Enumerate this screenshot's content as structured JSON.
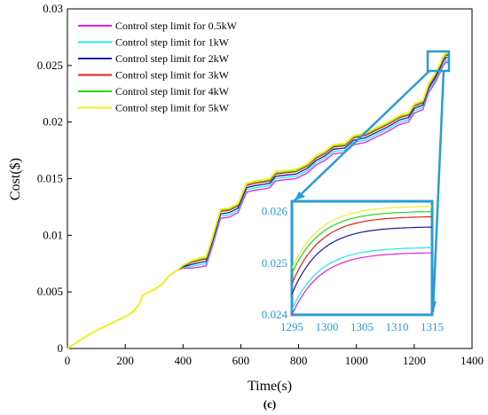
{
  "chart_data": {
    "type": "line",
    "caption": "(c)",
    "xlabel": "Time(s)",
    "ylabel": "Cost($)",
    "xlim": [
      0,
      1400
    ],
    "ylim": [
      0,
      0.03
    ],
    "x_ticks": [
      "0",
      "200",
      "400",
      "600",
      "800",
      "1000",
      "1200",
      "1400"
    ],
    "y_ticks": [
      "0",
      "0.005",
      "0.01",
      "0.015",
      "0.02",
      "0.025",
      "0.03"
    ],
    "grid": false,
    "legend_position": "top-left",
    "series": [
      {
        "name": "Control step limit for 0.5kW",
        "color": "#e020e0",
        "offset": -0.0006,
        "final": 0.0252
      },
      {
        "name": "Control step limit for 1kW",
        "color": "#20e8e8",
        "offset": -0.0004,
        "final": 0.0253
      },
      {
        "name": "Control step limit for 2kW",
        "color": "#1a1aa0",
        "offset": -0.0002,
        "final": 0.0257
      },
      {
        "name": "Control step limit for 3kW",
        "color": "#e02020",
        "offset": 0.0,
        "final": 0.0259
      },
      {
        "name": "Control step limit for 4kW",
        "color": "#20d820",
        "offset": 0.0001,
        "final": 0.026
      },
      {
        "name": "Control step limit for 5kW",
        "color": "#f0f020",
        "offset": 0.0002,
        "final": 0.0261
      }
    ],
    "base_curve": {
      "x": [
        0,
        30,
        60,
        100,
        150,
        200,
        230,
        250,
        260,
        300,
        330,
        350,
        380,
        400,
        430,
        460,
        480,
        500,
        530,
        560,
        590,
        620,
        650,
        680,
        700,
        720,
        750,
        790,
        830,
        860,
        890,
        920,
        960,
        990,
        1030,
        1070,
        1110,
        1150,
        1180,
        1200,
        1230,
        1250,
        1270,
        1290,
        1300,
        1310,
        1320
      ],
      "y": [
        0,
        0.0005,
        0.001,
        0.0016,
        0.0022,
        0.0028,
        0.0033,
        0.004,
        0.0047,
        0.0052,
        0.0057,
        0.0064,
        0.0069,
        0.0073,
        0.0076,
        0.0078,
        0.0079,
        0.0095,
        0.0121,
        0.0122,
        0.0126,
        0.0144,
        0.0146,
        0.0147,
        0.0148,
        0.0154,
        0.0155,
        0.0156,
        0.0161,
        0.0168,
        0.0172,
        0.0178,
        0.0179,
        0.0186,
        0.0188,
        0.0193,
        0.0198,
        0.0204,
        0.0206,
        0.0214,
        0.0217,
        0.0232,
        0.024,
        0.025,
        0.0256,
        0.0259,
        0.026
      ]
    },
    "inset": {
      "xlim": [
        1295,
        1315
      ],
      "ylim": [
        0.024,
        0.0262
      ],
      "x_ticks": [
        "1295",
        "1300",
        "1305",
        "1310",
        "1315"
      ],
      "y_ticks": [
        "0.024",
        "0.025",
        "0.026"
      ],
      "start_values": [
        0.024,
        0.0241,
        0.0244,
        0.0246,
        0.0248,
        0.0249
      ],
      "end_values": [
        0.0252,
        0.0253,
        0.0257,
        0.0259,
        0.026,
        0.0261
      ],
      "zoom_color": "#2a9bd6"
    }
  }
}
